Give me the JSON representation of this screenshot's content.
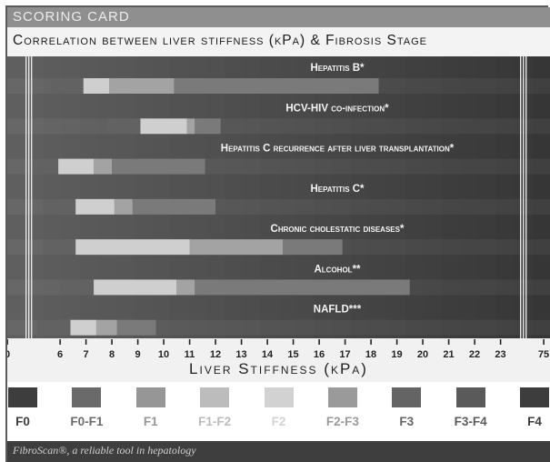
{
  "header": {
    "title": "SCORING CARD"
  },
  "subtitle": "Correlation between liver stiffness (kPa) & Fibrosis Stage",
  "conditions": [
    {
      "label": "Hepatitis B*",
      "light": [
        6.9,
        7.9
      ],
      "mid": [
        7.9,
        10.4
      ],
      "dark_end": 18.3
    },
    {
      "label": "HCV-HIV co-infection*",
      "light": [
        9.1,
        10.9
      ],
      "mid": [
        10.9,
        11.2
      ],
      "dark_end": 12.2
    },
    {
      "label": "Hepatitis C recurrence after liver transplantation*",
      "light": [
        5.8,
        7.3
      ],
      "mid": [
        7.3,
        8.0
      ],
      "dark_end": 11.6
    },
    {
      "label": "Hepatitis C*",
      "light": [
        6.6,
        8.1
      ],
      "mid": [
        8.1,
        8.8
      ],
      "dark_end": 12.0
    },
    {
      "label": "Chronic cholestatic diseases*",
      "light": [
        6.6,
        11.0
      ],
      "mid": [
        11.0,
        14.6
      ],
      "dark_end": 16.9
    },
    {
      "label": "Alcohol**",
      "light": [
        7.3,
        10.5
      ],
      "mid": [
        10.5,
        11.2
      ],
      "dark_end": 19.5
    },
    {
      "label": "NAFLD***",
      "light": [
        6.4,
        7.4
      ],
      "mid": [
        7.4,
        8.2
      ],
      "dark_end": 9.7
    }
  ],
  "axis": {
    "ticks": [
      "0",
      "6",
      "7",
      "8",
      "9",
      "10",
      "11",
      "12",
      "13",
      "14",
      "15",
      "16",
      "17",
      "18",
      "19",
      "20",
      "21",
      "22",
      "23",
      "75"
    ],
    "title": "Liver Stiffness (kPa)"
  },
  "legend": [
    {
      "label": "F0",
      "color": "#3d3d3d"
    },
    {
      "label": "F0-F1",
      "color": "#6a6a6a"
    },
    {
      "label": "F1",
      "color": "#969696"
    },
    {
      "label": "F1-F2",
      "color": "#bcbcbc"
    },
    {
      "label": "F2",
      "color": "#d2d2d2"
    },
    {
      "label": "F2-F3",
      "color": "#9a9a9a"
    },
    {
      "label": "F3",
      "color": "#646464"
    },
    {
      "label": "F3-F4",
      "color": "#5a5a5a"
    },
    {
      "label": "F4",
      "color": "#3d3d3d"
    }
  ],
  "footer": "FibroScan®, a reliable tool in hepatology"
}
